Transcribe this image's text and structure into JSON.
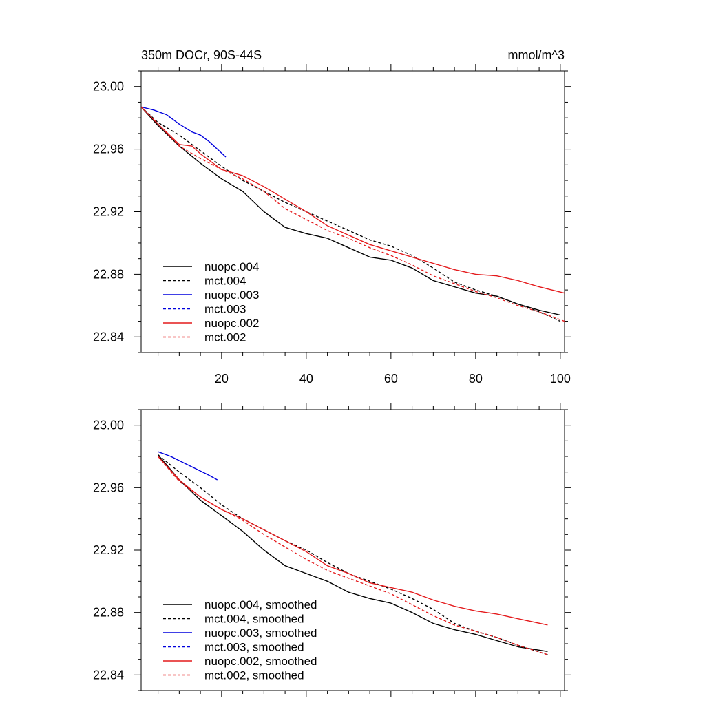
{
  "colors": {
    "black": "#000000",
    "blue": "#0000dd",
    "red": "#e41a1c"
  },
  "chart_data": [
    {
      "type": "line",
      "title": "350m DOCr, 90S-44S",
      "units": "mmol/m^3",
      "xlim": [
        1,
        101
      ],
      "ylim": [
        22.83,
        23.01
      ],
      "xticks": [
        20,
        40,
        60,
        80,
        100
      ],
      "xtick_labels": [
        "20",
        "40",
        "60",
        "80",
        "100"
      ],
      "yticks": [
        22.84,
        22.88,
        22.92,
        22.96,
        23.0
      ],
      "ytick_labels": [
        "22.84",
        "22.88",
        "22.92",
        "22.96",
        "23.00"
      ],
      "legend": "bottom-left",
      "series": [
        {
          "name": "nuopc.004",
          "color": "black",
          "dash": "solid",
          "x": [
            1,
            5,
            10,
            15,
            20,
            25,
            30,
            35,
            40,
            45,
            50,
            55,
            60,
            65,
            70,
            75,
            80,
            85,
            90,
            95,
            100
          ],
          "y": [
            22.987,
            22.975,
            22.962,
            22.951,
            22.941,
            22.933,
            22.92,
            22.91,
            22.906,
            22.903,
            22.897,
            22.891,
            22.889,
            22.884,
            22.876,
            22.872,
            22.868,
            22.866,
            22.861,
            22.857,
            22.854
          ]
        },
        {
          "name": "mct.004",
          "color": "black",
          "dash": "dashed",
          "x": [
            1,
            5,
            10,
            15,
            20,
            25,
            30,
            35,
            40,
            45,
            50,
            55,
            60,
            65,
            70,
            75,
            80,
            85,
            90,
            95,
            100
          ],
          "y": [
            22.987,
            22.977,
            22.969,
            22.959,
            22.949,
            22.94,
            22.933,
            22.926,
            22.92,
            22.914,
            22.908,
            22.902,
            22.898,
            22.892,
            22.884,
            22.875,
            22.87,
            22.866,
            22.861,
            22.856,
            22.85
          ]
        },
        {
          "name": "nuopc.003",
          "color": "blue",
          "dash": "solid",
          "x": [
            1,
            4,
            7,
            10,
            13,
            15,
            17,
            19,
            21
          ],
          "y": [
            22.987,
            22.985,
            22.982,
            22.976,
            22.971,
            22.969,
            22.965,
            22.96,
            22.955
          ]
        },
        {
          "name": "mct.003",
          "color": "blue",
          "dash": "dashed",
          "x": [],
          "y": []
        },
        {
          "name": "nuopc.002",
          "color": "red",
          "dash": "solid",
          "x": [
            1,
            5,
            10,
            13,
            15,
            20,
            25,
            30,
            35,
            40,
            45,
            50,
            55,
            60,
            65,
            70,
            75,
            80,
            85,
            90,
            95,
            101
          ],
          "y": [
            22.987,
            22.976,
            22.963,
            22.962,
            22.957,
            22.947,
            22.943,
            22.936,
            22.928,
            22.92,
            22.911,
            22.905,
            22.899,
            22.895,
            22.891,
            22.887,
            22.883,
            22.88,
            22.879,
            22.876,
            22.872,
            22.868
          ]
        },
        {
          "name": "mct.002",
          "color": "red",
          "dash": "dashed",
          "x": [
            1,
            5,
            10,
            15,
            20,
            25,
            30,
            35,
            40,
            45,
            50,
            55,
            60,
            65,
            70,
            75,
            80,
            85,
            90,
            95,
            101
          ],
          "y": [
            22.987,
            22.976,
            22.962,
            22.954,
            22.947,
            22.941,
            22.933,
            22.922,
            22.915,
            22.908,
            22.903,
            22.897,
            22.892,
            22.886,
            22.879,
            22.874,
            22.869,
            22.865,
            22.86,
            22.856,
            22.85
          ]
        }
      ]
    },
    {
      "type": "line",
      "title": "",
      "units": "",
      "xlim": [
        1,
        101
      ],
      "ylim": [
        22.83,
        23.01
      ],
      "xticks": [
        20,
        40,
        60,
        80,
        100
      ],
      "xtick_labels": [],
      "yticks": [
        22.84,
        22.88,
        22.92,
        22.96,
        23.0
      ],
      "ytick_labels": [
        "22.84",
        "22.88",
        "22.92",
        "22.96",
        "23.00"
      ],
      "legend": "bottom-left",
      "series": [
        {
          "name": "nuopc.004, smoothed",
          "color": "black",
          "dash": "solid",
          "x": [
            5,
            10,
            15,
            20,
            25,
            30,
            35,
            40,
            45,
            50,
            55,
            60,
            65,
            70,
            75,
            80,
            85,
            90,
            97
          ],
          "y": [
            22.981,
            22.965,
            22.952,
            22.942,
            22.932,
            22.92,
            22.91,
            22.905,
            22.9,
            22.893,
            22.889,
            22.886,
            22.88,
            22.873,
            22.869,
            22.866,
            22.862,
            22.858,
            22.855
          ]
        },
        {
          "name": "mct.004, smoothed",
          "color": "black",
          "dash": "dashed",
          "x": [
            5,
            10,
            15,
            20,
            25,
            30,
            35,
            40,
            45,
            50,
            55,
            60,
            65,
            70,
            75,
            80,
            85,
            90,
            97
          ],
          "y": [
            22.981,
            22.97,
            22.96,
            22.949,
            22.94,
            22.933,
            22.926,
            22.92,
            22.912,
            22.905,
            22.9,
            22.895,
            22.889,
            22.882,
            22.873,
            22.868,
            22.864,
            22.859,
            22.853
          ]
        },
        {
          "name": "nuopc.003, smoothed",
          "color": "blue",
          "dash": "solid",
          "x": [
            5,
            8,
            11,
            14,
            17,
            19
          ],
          "y": [
            22.983,
            22.98,
            22.976,
            22.972,
            22.968,
            22.965
          ]
        },
        {
          "name": "mct.003, smoothed",
          "color": "blue",
          "dash": "dashed",
          "x": [],
          "y": []
        },
        {
          "name": "nuopc.002, smoothed",
          "color": "red",
          "dash": "solid",
          "x": [
            5,
            10,
            15,
            20,
            25,
            30,
            35,
            40,
            45,
            50,
            55,
            60,
            65,
            70,
            75,
            80,
            85,
            90,
            97
          ],
          "y": [
            22.98,
            22.965,
            22.954,
            22.946,
            22.94,
            22.933,
            22.926,
            22.919,
            22.91,
            22.905,
            22.899,
            22.896,
            22.893,
            22.888,
            22.884,
            22.881,
            22.879,
            22.876,
            22.872
          ]
        },
        {
          "name": "mct.002, smoothed",
          "color": "red",
          "dash": "dashed",
          "x": [
            5,
            10,
            15,
            20,
            25,
            30,
            35,
            40,
            45,
            50,
            55,
            60,
            65,
            70,
            75,
            80,
            85,
            90,
            97
          ],
          "y": [
            22.98,
            22.964,
            22.954,
            22.946,
            22.939,
            22.93,
            22.922,
            22.914,
            22.907,
            22.902,
            22.897,
            22.892,
            22.885,
            22.878,
            22.872,
            22.868,
            22.864,
            22.859,
            22.853
          ]
        }
      ]
    }
  ]
}
